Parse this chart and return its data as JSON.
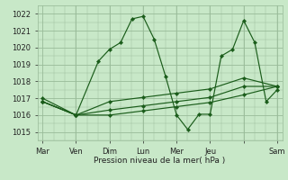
{
  "bg_color": "#c8e8c8",
  "grid_color": "#99bb99",
  "line_color": "#1a5c1a",
  "marker_color": "#1a5c1a",
  "xlabel": "Pression niveau de la mer( hPa )",
  "ylim": [
    1014.5,
    1022.5
  ],
  "yticks": [
    1015,
    1016,
    1017,
    1018,
    1019,
    1020,
    1021,
    1022
  ],
  "xlim": [
    -0.15,
    7.15
  ],
  "xtick_positions": [
    0,
    1,
    2,
    3,
    4,
    5,
    6,
    7
  ],
  "xtick_labels": [
    "Mar",
    "Ven",
    "Dim",
    "Lun",
    "Mer",
    "Jeu",
    "",
    "Sam"
  ],
  "vlines": [
    0,
    1,
    2,
    3,
    4,
    5,
    6,
    7
  ],
  "series": [
    {
      "x": [
        0,
        1,
        1.67,
        2.0,
        2.33,
        2.67,
        3.0,
        3.33,
        3.67,
        4.0,
        4.33,
        4.67,
        5.0,
        5.33,
        5.67,
        6.0,
        6.33,
        6.67,
        7.0
      ],
      "y": [
        1017.0,
        1016.0,
        1019.2,
        1019.9,
        1020.3,
        1021.7,
        1021.85,
        1020.5,
        1018.3,
        1016.0,
        1015.15,
        1016.05,
        1016.05,
        1019.5,
        1019.9,
        1021.6,
        1020.3,
        1016.8,
        1017.5
      ]
    },
    {
      "x": [
        0,
        1,
        2,
        3,
        4,
        5,
        6,
        7
      ],
      "y": [
        1016.8,
        1016.0,
        1016.8,
        1017.05,
        1017.3,
        1017.55,
        1018.2,
        1017.7
      ]
    },
    {
      "x": [
        0,
        1,
        2,
        3,
        4,
        5,
        6,
        7
      ],
      "y": [
        1016.8,
        1016.0,
        1016.3,
        1016.55,
        1016.8,
        1017.05,
        1017.7,
        1017.7
      ]
    },
    {
      "x": [
        0,
        1,
        2,
        3,
        4,
        5,
        6,
        7
      ],
      "y": [
        1016.8,
        1016.0,
        1016.0,
        1016.25,
        1016.5,
        1016.75,
        1017.2,
        1017.7
      ]
    }
  ]
}
